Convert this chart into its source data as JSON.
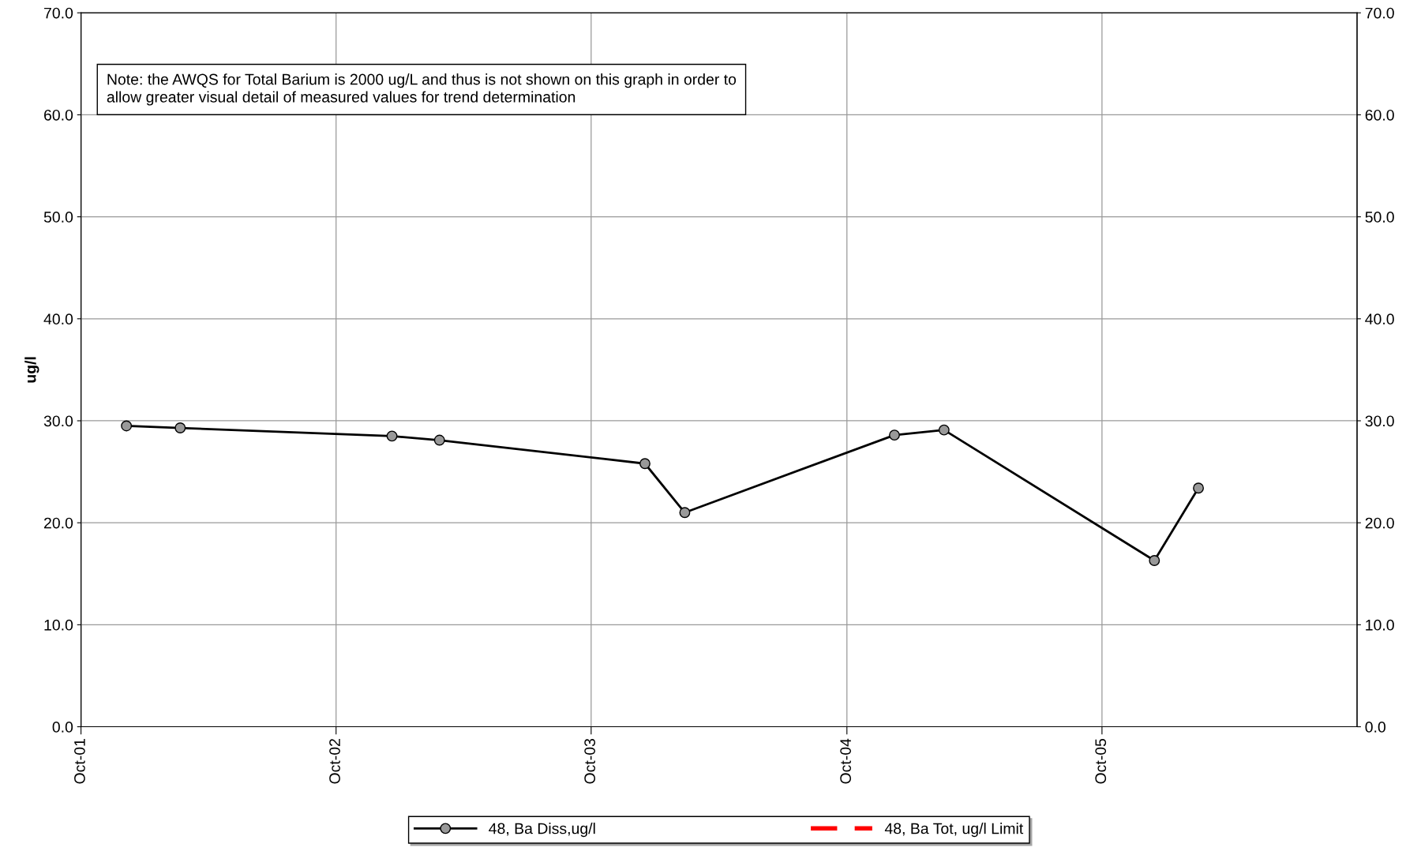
{
  "chart_data": {
    "type": "line",
    "ylabel": "ug/l",
    "annotations": [
      "Note: the AWQS for Total Barium is 2000 ug/L and thus is not shown on this graph in order to allow greater visual detail of measured values for trend determination"
    ],
    "series": [
      {
        "name": "48, Ba Diss,ug/l",
        "color": "#000000",
        "marker": "circle",
        "line_style": "solid",
        "x": [
          "2001-12-05",
          "2002-02-20",
          "2002-12-20",
          "2003-02-26",
          "2003-12-17",
          "2004-02-12",
          "2004-12-08",
          "2005-02-17",
          "2005-12-15",
          "2006-02-16"
        ],
        "values": [
          29.5,
          29.3,
          28.5,
          28.1,
          25.8,
          21.0,
          28.6,
          29.1,
          16.3,
          23.4
        ]
      },
      {
        "name": "48, Ba Tot, ug/l Limit",
        "color": "#ff0000",
        "marker": "none",
        "line_style": "dashed"
      }
    ],
    "xlim": [
      "2001-10-01",
      "2006-10-01"
    ],
    "xticks": [
      {
        "value": "2001-10-01",
        "label": "Oct-01"
      },
      {
        "value": "2002-10-01",
        "label": "Oct-02"
      },
      {
        "value": "2003-10-01",
        "label": "Oct-03"
      },
      {
        "value": "2004-10-01",
        "label": "Oct-04"
      },
      {
        "value": "2005-10-01",
        "label": "Oct-05"
      }
    ],
    "ylim": [
      0,
      70
    ],
    "yticks": [
      {
        "value": 0,
        "label": "0.0"
      },
      {
        "value": 10,
        "label": "10.0"
      },
      {
        "value": 20,
        "label": "20.0"
      },
      {
        "value": 30,
        "label": "30.0"
      },
      {
        "value": 40,
        "label": "40.0"
      },
      {
        "value": 50,
        "label": "50.0"
      },
      {
        "value": 60,
        "label": "60.0"
      },
      {
        "value": 70,
        "label": "70.0"
      }
    ],
    "y2lim": [
      0,
      70
    ],
    "y2ticks": [
      {
        "value": 0,
        "label": "0.0"
      },
      {
        "value": 10,
        "label": "10.0"
      },
      {
        "value": 20,
        "label": "20.0"
      },
      {
        "value": 30,
        "label": "30.0"
      },
      {
        "value": 40,
        "label": "40.0"
      },
      {
        "value": 50,
        "label": "50.0"
      },
      {
        "value": 60,
        "label": "60.0"
      },
      {
        "value": 70,
        "label": "70.0"
      }
    ],
    "grid": true,
    "legend": "bottom"
  }
}
